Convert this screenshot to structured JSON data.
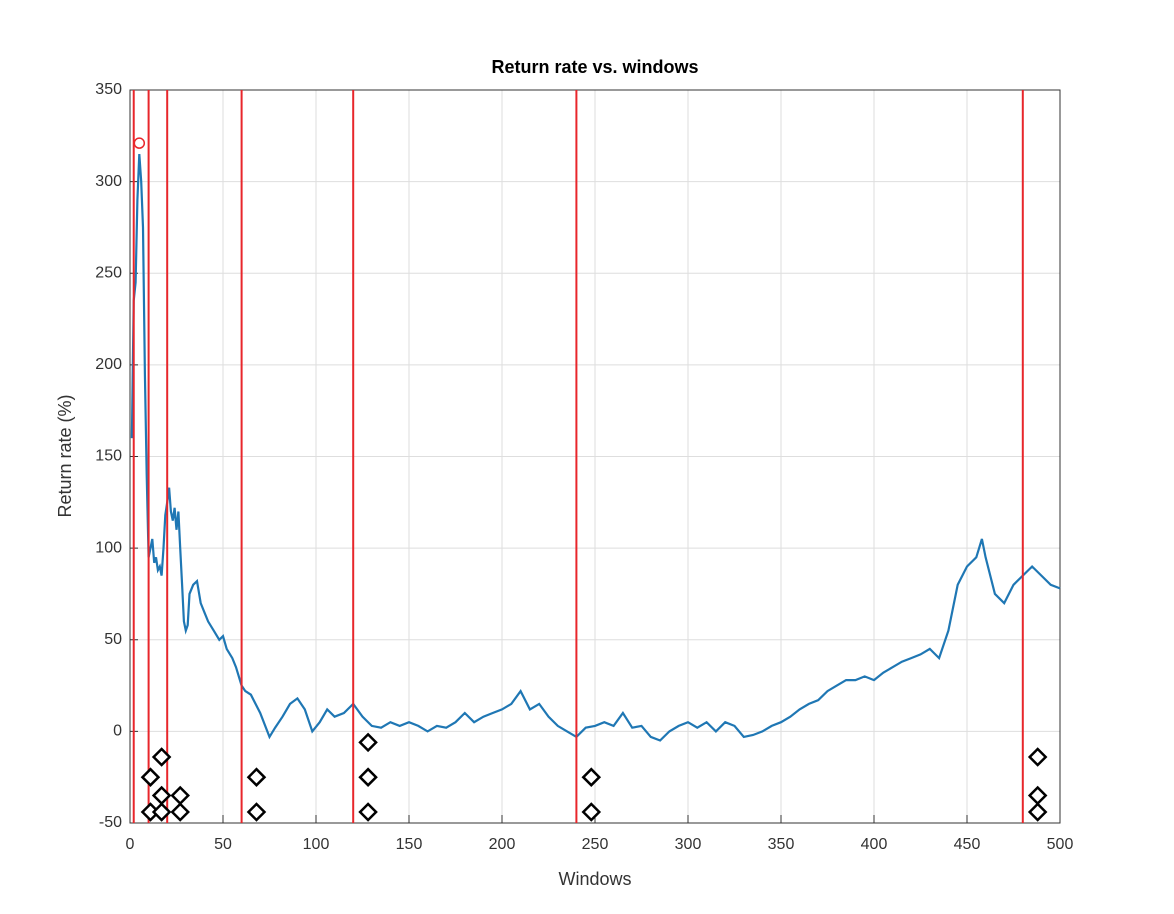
{
  "chart_data": {
    "type": "line",
    "title": "Return rate vs. windows",
    "xlabel": "Windows",
    "ylabel": "Return rate (%)",
    "x": [
      1,
      2,
      3,
      4,
      5,
      6,
      7,
      8,
      9,
      10,
      11,
      12,
      13,
      14,
      15,
      16,
      17,
      18,
      19,
      20,
      21,
      22,
      23,
      24,
      25,
      26,
      27,
      28,
      29,
      30,
      31,
      32,
      34,
      36,
      38,
      40,
      42,
      45,
      48,
      50,
      52,
      55,
      57,
      60,
      62,
      65,
      70,
      75,
      78,
      82,
      86,
      90,
      94,
      98,
      102,
      106,
      110,
      115,
      120,
      125,
      130,
      135,
      140,
      145,
      150,
      155,
      160,
      165,
      170,
      175,
      180,
      185,
      190,
      195,
      200,
      205,
      210,
      215,
      220,
      225,
      230,
      235,
      240,
      245,
      250,
      255,
      260,
      265,
      270,
      275,
      280,
      285,
      290,
      295,
      300,
      305,
      310,
      315,
      320,
      325,
      330,
      335,
      340,
      345,
      350,
      355,
      360,
      365,
      370,
      375,
      380,
      385,
      390,
      395,
      400,
      405,
      410,
      415,
      420,
      425,
      430,
      435,
      440,
      445,
      450,
      455,
      458,
      460,
      465,
      470,
      475,
      480,
      485,
      490,
      495,
      500
    ],
    "series": [
      {
        "color": "#1f77b4",
        "values": [
          160,
          235,
          245,
          290,
          315,
          300,
          275,
          195,
          140,
          95,
          100,
          105,
          92,
          95,
          88,
          90,
          85,
          100,
          118,
          125,
          133,
          120,
          115,
          122,
          110,
          120,
          100,
          80,
          60,
          55,
          58,
          75,
          80,
          82,
          70,
          65,
          60,
          55,
          50,
          52,
          45,
          40,
          35,
          25,
          22,
          20,
          10,
          -3,
          2,
          8,
          15,
          18,
          12,
          0,
          5,
          12,
          8,
          10,
          15,
          8,
          3,
          2,
          5,
          3,
          5,
          3,
          0,
          3,
          2,
          5,
          10,
          5,
          8,
          10,
          12,
          15,
          22,
          12,
          15,
          8,
          3,
          0,
          -3,
          2,
          3,
          5,
          3,
          10,
          2,
          3,
          -3,
          -5,
          0,
          3,
          5,
          2,
          5,
          0,
          5,
          3,
          -3,
          -2,
          0,
          3,
          5,
          8,
          12,
          15,
          17,
          22,
          25,
          28,
          28,
          30,
          28,
          32,
          35,
          38,
          40,
          42,
          45,
          40,
          55,
          80,
          90,
          95,
          105,
          95,
          75,
          70,
          80,
          85,
          90,
          85,
          80,
          78
        ]
      }
    ],
    "vlines": [
      2,
      10,
      20,
      60,
      120,
      240,
      480
    ],
    "vline_color": "#e8262b",
    "highlight": {
      "x": 5,
      "y": 321,
      "color": "#e8262b"
    },
    "markers": {
      "x": [
        11,
        11,
        17,
        17,
        17,
        27,
        27,
        68,
        68,
        128,
        128,
        128,
        248,
        248,
        488,
        488,
        488
      ],
      "y": [
        -25,
        -44,
        -14,
        -35,
        -44,
        -35,
        -44,
        -25,
        -44,
        -6,
        -25,
        -44,
        -25,
        -44,
        -14,
        -35,
        -44
      ]
    },
    "xlim": [
      0,
      500
    ],
    "xticks": [
      0,
      50,
      100,
      150,
      200,
      250,
      300,
      350,
      400,
      450,
      500
    ],
    "ylim": [
      -50,
      350
    ],
    "yticks": [
      -50,
      0,
      50,
      100,
      150,
      200,
      250,
      300,
      350
    ],
    "grid": true
  }
}
